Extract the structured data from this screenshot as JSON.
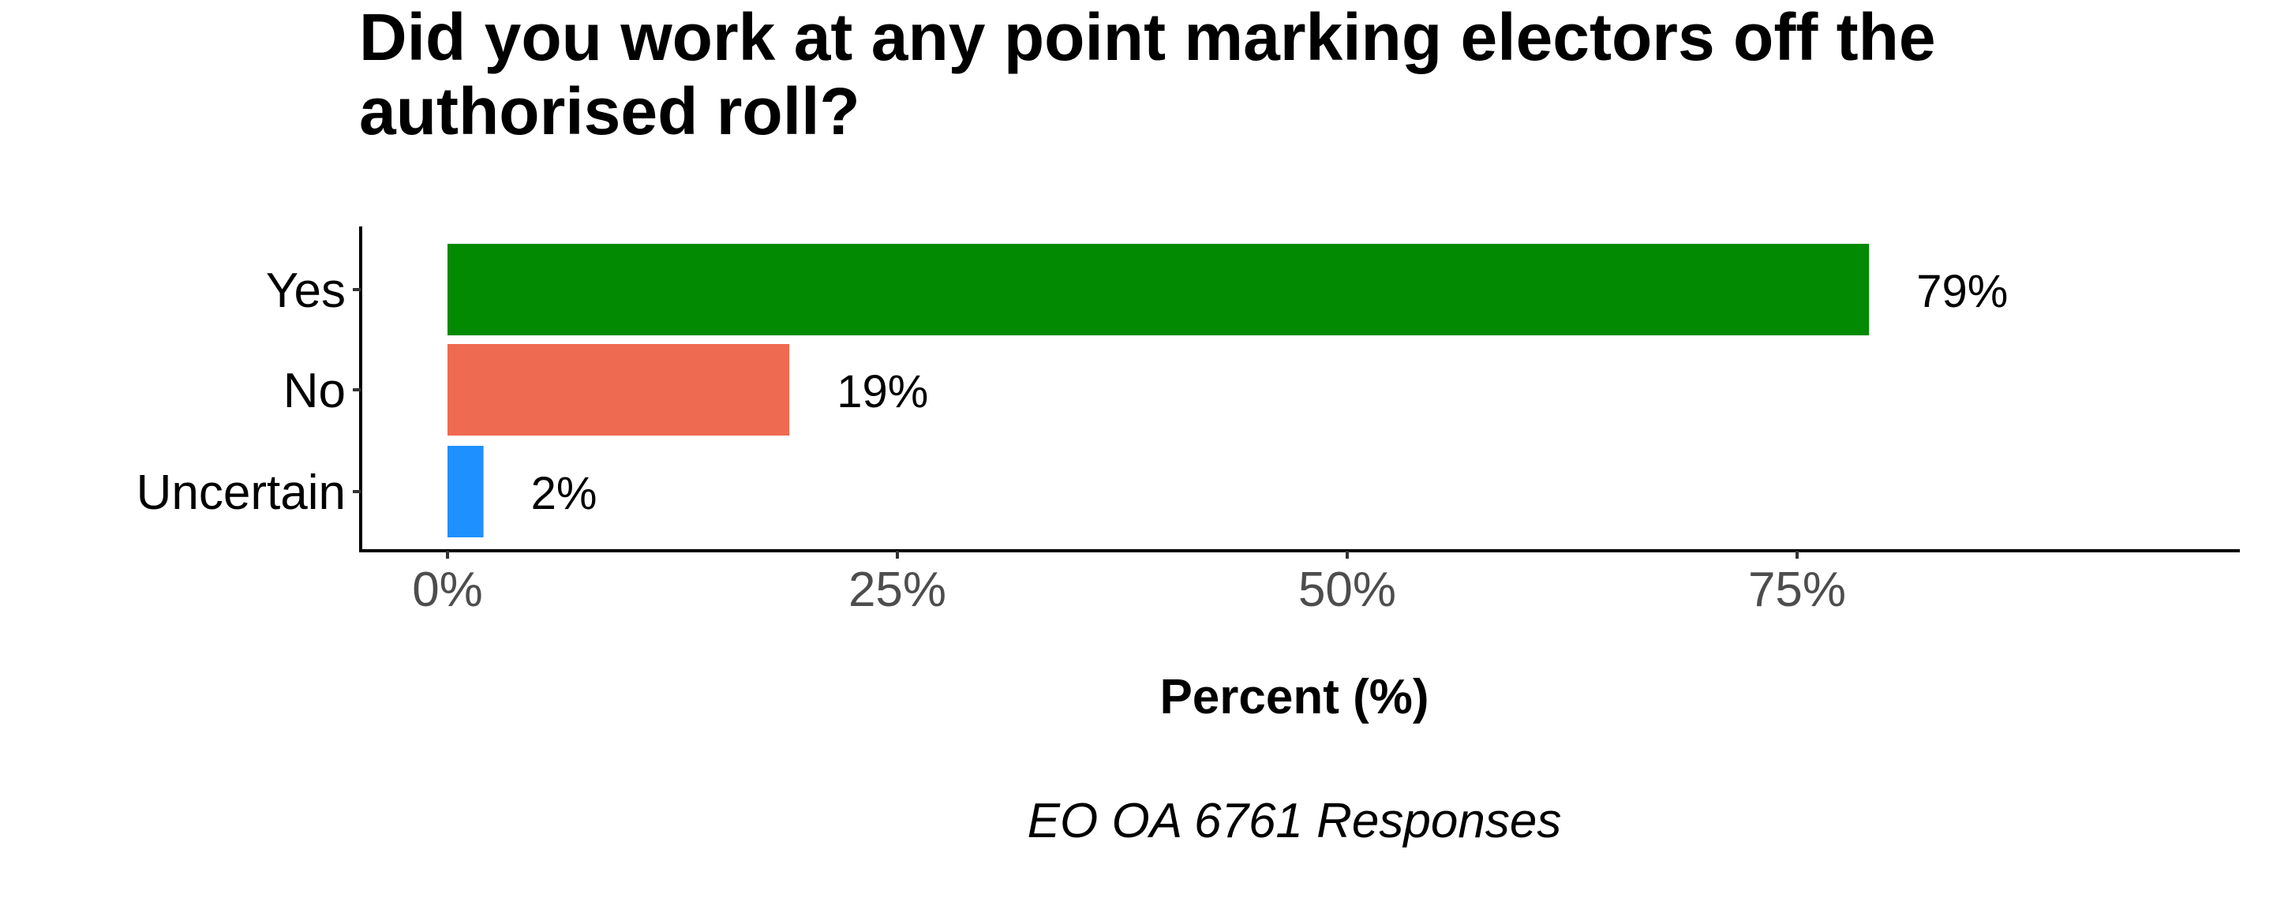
{
  "chart_data": {
    "type": "bar",
    "orientation": "horizontal",
    "title": "Did you work at any point marking electors off the authorised roll?",
    "xlabel": "Percent (%)",
    "ylabel": "",
    "caption": "EO OA 6761 Responses",
    "categories": [
      "Yes",
      "No",
      "Uncertain"
    ],
    "values": [
      79,
      19,
      2
    ],
    "value_labels": [
      "79%",
      "19%",
      "2%"
    ],
    "colors": [
      "#028A02",
      "#EE6A50",
      "#1E90FF"
    ],
    "xlim": [
      0,
      100
    ],
    "x_ticks": [
      0,
      25,
      50,
      75
    ],
    "x_tick_labels": [
      "0%",
      "25%",
      "50%",
      "75%"
    ],
    "grid": false,
    "legend": "none"
  }
}
